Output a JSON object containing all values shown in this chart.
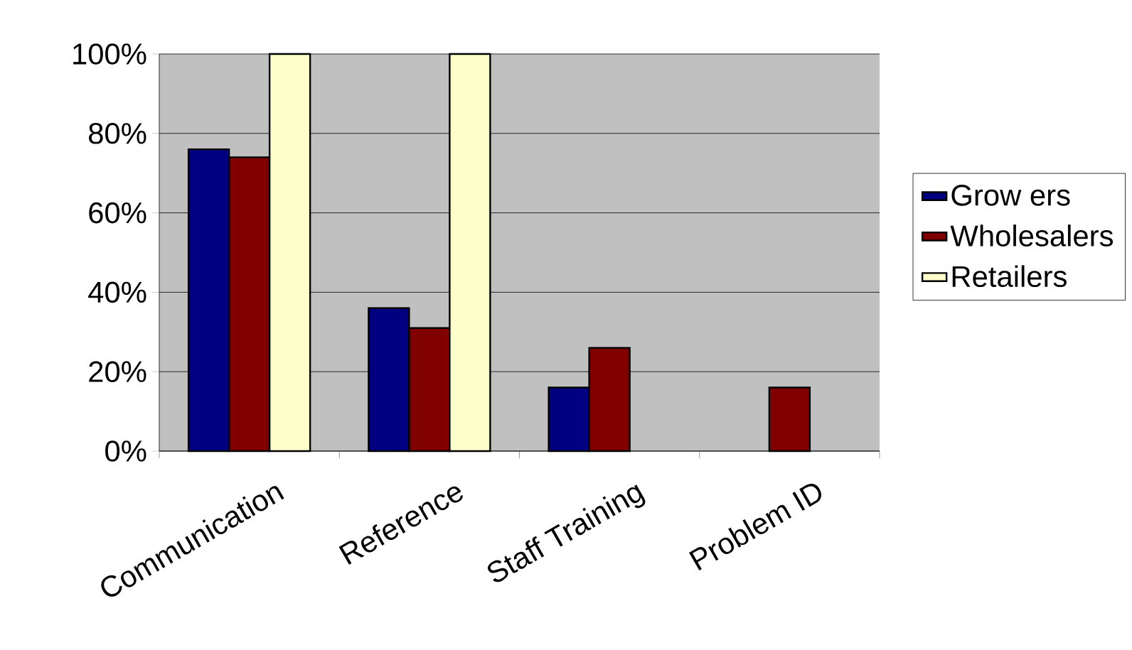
{
  "chart_data": {
    "type": "bar",
    "categories": [
      "Communication",
      "Reference",
      "Staff Training",
      "Problem ID"
    ],
    "series": [
      {
        "name": "Grow ers",
        "color": "#000080",
        "values": [
          76,
          36,
          16,
          null
        ]
      },
      {
        "name": "Wholesalers",
        "color": "#800000",
        "values": [
          74,
          31,
          26,
          16
        ]
      },
      {
        "name": "Retailers",
        "color": "#ffffcc",
        "values": [
          100,
          100,
          null,
          null
        ]
      }
    ],
    "ylim": [
      0,
      100
    ],
    "yticks": [
      {
        "value": 0,
        "label": "0%"
      },
      {
        "value": 20,
        "label": "20%"
      },
      {
        "value": 40,
        "label": "40%"
      },
      {
        "value": 60,
        "label": "60%"
      },
      {
        "value": 80,
        "label": "80%"
      },
      {
        "value": 100,
        "label": "100%"
      }
    ],
    "grid": "y",
    "legend": "right"
  }
}
